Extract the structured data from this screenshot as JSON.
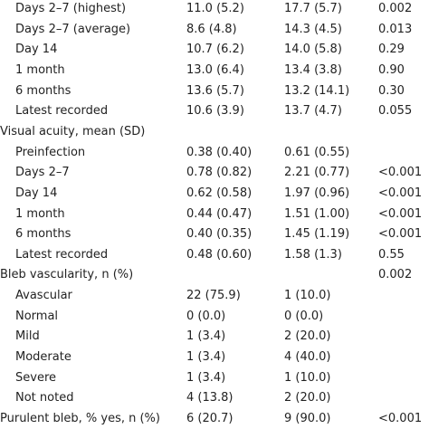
{
  "table": {
    "sections": [
      {
        "rows": [
          [
            "Days 2–7 (highest)",
            "11.0 (5.2)",
            "17.7 (5.7)",
            "0.002"
          ],
          [
            "Days 2–7 (average)",
            "8.6 (4.8)",
            "14.3 (4.5)",
            "0.013"
          ],
          [
            "Day 14",
            "10.7 (6.2)",
            "14.0 (5.8)",
            "0.29"
          ],
          [
            "1 month",
            "13.0 (6.4)",
            "13.4 (3.8)",
            "0.90"
          ],
          [
            "6 months",
            "13.6 (5.7)",
            "13.2 (14.1)",
            "0.30"
          ],
          [
            "Latest recorded",
            "10.6 (3.9)",
            "13.7 (4.7)",
            "0.055"
          ]
        ]
      },
      {
        "title": "Visual acuity, mean (SD)",
        "rows": [
          [
            "Preinfection",
            "0.38 (0.40)",
            "0.61 (0.55)"
          ],
          [
            "Days 2–7",
            "0.78 (0.82)",
            "2.21 (0.77)",
            "<0.001"
          ],
          [
            "Day 14",
            "0.62 (0.58)",
            "1.97 (0.96)",
            "<0.001"
          ],
          [
            "1 month",
            "0.44 (0.47)",
            "1.51 (1.00)",
            "<0.001"
          ],
          [
            "6 months",
            "0.40 (0.35)",
            "1.45 (1.19)",
            "<0.001"
          ],
          [
            "Latest recorded",
            "0.48 (0.60)",
            "1.58 (1.3)",
            "0.55"
          ]
        ]
      },
      {
        "title": "Bleb vascularity, n (%)",
        "p_value": "0.002",
        "rows": [
          [
            "Avascular",
            "22 (75.9)",
            "1 (10.0)"
          ],
          [
            "Normal",
            "0 (0.0)",
            "0 (0.0)"
          ],
          [
            "Mild",
            "1 (3.4)",
            "2 (20.0)"
          ],
          [
            "Moderate",
            "1 (3.4)",
            "4 (40.0)"
          ],
          [
            "Severe",
            "1 (3.4)",
            "1 (10.0)"
          ],
          [
            "Not noted",
            "4 (13.8)",
            "2 (20.0)"
          ]
        ]
      },
      {
        "title": "Purulent bleb, % yes, n (%)",
        "values": [
          "6 (20.7)",
          "9 (90.0)",
          "<0.001"
        ]
      }
    ]
  }
}
